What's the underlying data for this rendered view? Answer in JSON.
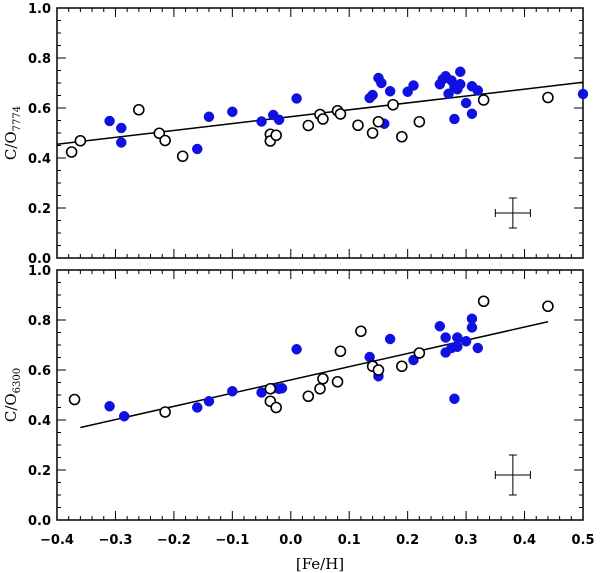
{
  "chart_data": [
    {
      "type": "scatter",
      "panel": "top",
      "ylabel_main": "C/O",
      "ylabel_sub": "7774",
      "xlabel": "",
      "xlim": [
        -0.4,
        0.5
      ],
      "ylim": [
        0.0,
        1.0
      ],
      "xticks": [
        "−0.4",
        "−0.3",
        "−0.2",
        "−0.1",
        "0.0",
        "0.1",
        "0.2",
        "0.3",
        "0.4",
        "0.5"
      ],
      "yticks": [
        "0.0",
        "0.2",
        "0.4",
        "0.6",
        "0.8",
        "1.0"
      ],
      "fit_line": {
        "x": [
          -0.4,
          0.5
        ],
        "y": [
          0.455,
          0.703
        ]
      },
      "error_bar": {
        "x": 0.38,
        "y": 0.18,
        "xerr": 0.03,
        "yerr": 0.06
      },
      "series": [
        {
          "name": "filled",
          "color": "#1010e0",
          "points": [
            [
              -0.31,
              0.548
            ],
            [
              -0.29,
              0.52
            ],
            [
              -0.29,
              0.462
            ],
            [
              -0.16,
              0.436
            ],
            [
              -0.14,
              0.565
            ],
            [
              -0.1,
              0.585
            ],
            [
              -0.05,
              0.546
            ],
            [
              -0.03,
              0.572
            ],
            [
              -0.02,
              0.553
            ],
            [
              0.01,
              0.638
            ],
            [
              0.135,
              0.64
            ],
            [
              0.14,
              0.652
            ],
            [
              0.15,
              0.72
            ],
            [
              0.155,
              0.7
            ],
            [
              0.16,
              0.537
            ],
            [
              0.17,
              0.667
            ],
            [
              0.2,
              0.665
            ],
            [
              0.21,
              0.69
            ],
            [
              0.255,
              0.695
            ],
            [
              0.26,
              0.715
            ],
            [
              0.265,
              0.727
            ],
            [
              0.27,
              0.657
            ],
            [
              0.275,
              0.71
            ],
            [
              0.28,
              0.556
            ],
            [
              0.28,
              0.685
            ],
            [
              0.285,
              0.675
            ],
            [
              0.29,
              0.745
            ],
            [
              0.29,
              0.695
            ],
            [
              0.3,
              0.62
            ],
            [
              0.31,
              0.687
            ],
            [
              0.31,
              0.577
            ],
            [
              0.32,
              0.67
            ],
            [
              0.5,
              0.656
            ]
          ]
        },
        {
          "name": "open",
          "color": "#000000",
          "points": [
            [
              -0.375,
              0.424
            ],
            [
              -0.36,
              0.469
            ],
            [
              -0.26,
              0.593
            ],
            [
              -0.225,
              0.499
            ],
            [
              -0.215,
              0.47
            ],
            [
              -0.185,
              0.407
            ],
            [
              -0.035,
              0.495
            ],
            [
              -0.035,
              0.468
            ],
            [
              -0.025,
              0.491
            ],
            [
              0.03,
              0.53
            ],
            [
              0.05,
              0.574
            ],
            [
              0.055,
              0.556
            ],
            [
              0.08,
              0.589
            ],
            [
              0.085,
              0.576
            ],
            [
              0.115,
              0.531
            ],
            [
              0.14,
              0.5
            ],
            [
              0.15,
              0.545
            ],
            [
              0.175,
              0.613
            ],
            [
              0.19,
              0.485
            ],
            [
              0.22,
              0.545
            ],
            [
              0.33,
              0.632
            ],
            [
              0.44,
              0.642
            ]
          ]
        }
      ]
    },
    {
      "type": "scatter",
      "panel": "bottom",
      "ylabel_main": "C/O",
      "ylabel_sub": "6300",
      "xlabel": "[Fe/H]",
      "xlim": [
        -0.4,
        0.5
      ],
      "ylim": [
        0.0,
        1.0
      ],
      "xticks": [
        "−0.4",
        "−0.3",
        "−0.2",
        "−0.1",
        "0.0",
        "0.1",
        "0.2",
        "0.3",
        "0.4",
        "0.5"
      ],
      "yticks": [
        "0.0",
        "0.2",
        "0.4",
        "0.6",
        "0.8",
        "1.0"
      ],
      "fit_line": {
        "x": [
          -0.36,
          0.44
        ],
        "y": [
          0.37,
          0.793
        ]
      },
      "error_bar": {
        "x": 0.38,
        "y": 0.18,
        "xerr": 0.03,
        "yerr": 0.08
      },
      "series": [
        {
          "name": "filled",
          "color": "#1010e0",
          "points": [
            [
              -0.31,
              0.455
            ],
            [
              -0.285,
              0.415
            ],
            [
              -0.16,
              0.45
            ],
            [
              -0.14,
              0.475
            ],
            [
              -0.1,
              0.515
            ],
            [
              -0.05,
              0.51
            ],
            [
              -0.03,
              0.527
            ],
            [
              -0.02,
              0.525
            ],
            [
              -0.015,
              0.527
            ],
            [
              0.01,
              0.683
            ],
            [
              0.135,
              0.652
            ],
            [
              0.14,
              0.62
            ],
            [
              0.15,
              0.595
            ],
            [
              0.15,
              0.575
            ],
            [
              0.17,
              0.724
            ],
            [
              0.21,
              0.64
            ],
            [
              0.255,
              0.775
            ],
            [
              0.265,
              0.73
            ],
            [
              0.265,
              0.67
            ],
            [
              0.275,
              0.688
            ],
            [
              0.28,
              0.485
            ],
            [
              0.285,
              0.693
            ],
            [
              0.285,
              0.73
            ],
            [
              0.3,
              0.715
            ],
            [
              0.31,
              0.77
            ],
            [
              0.31,
              0.805
            ],
            [
              0.32,
              0.688
            ]
          ]
        },
        {
          "name": "open",
          "color": "#000000",
          "points": [
            [
              -0.37,
              0.482
            ],
            [
              -0.215,
              0.432
            ],
            [
              -0.035,
              0.525
            ],
            [
              -0.035,
              0.475
            ],
            [
              -0.025,
              0.45
            ],
            [
              0.03,
              0.495
            ],
            [
              0.05,
              0.525
            ],
            [
              0.055,
              0.565
            ],
            [
              0.08,
              0.553
            ],
            [
              0.085,
              0.675
            ],
            [
              0.12,
              0.755
            ],
            [
              0.14,
              0.615
            ],
            [
              0.15,
              0.6
            ],
            [
              0.19,
              0.615
            ],
            [
              0.22,
              0.668
            ],
            [
              0.33,
              0.875
            ],
            [
              0.44,
              0.855
            ]
          ]
        }
      ]
    }
  ]
}
